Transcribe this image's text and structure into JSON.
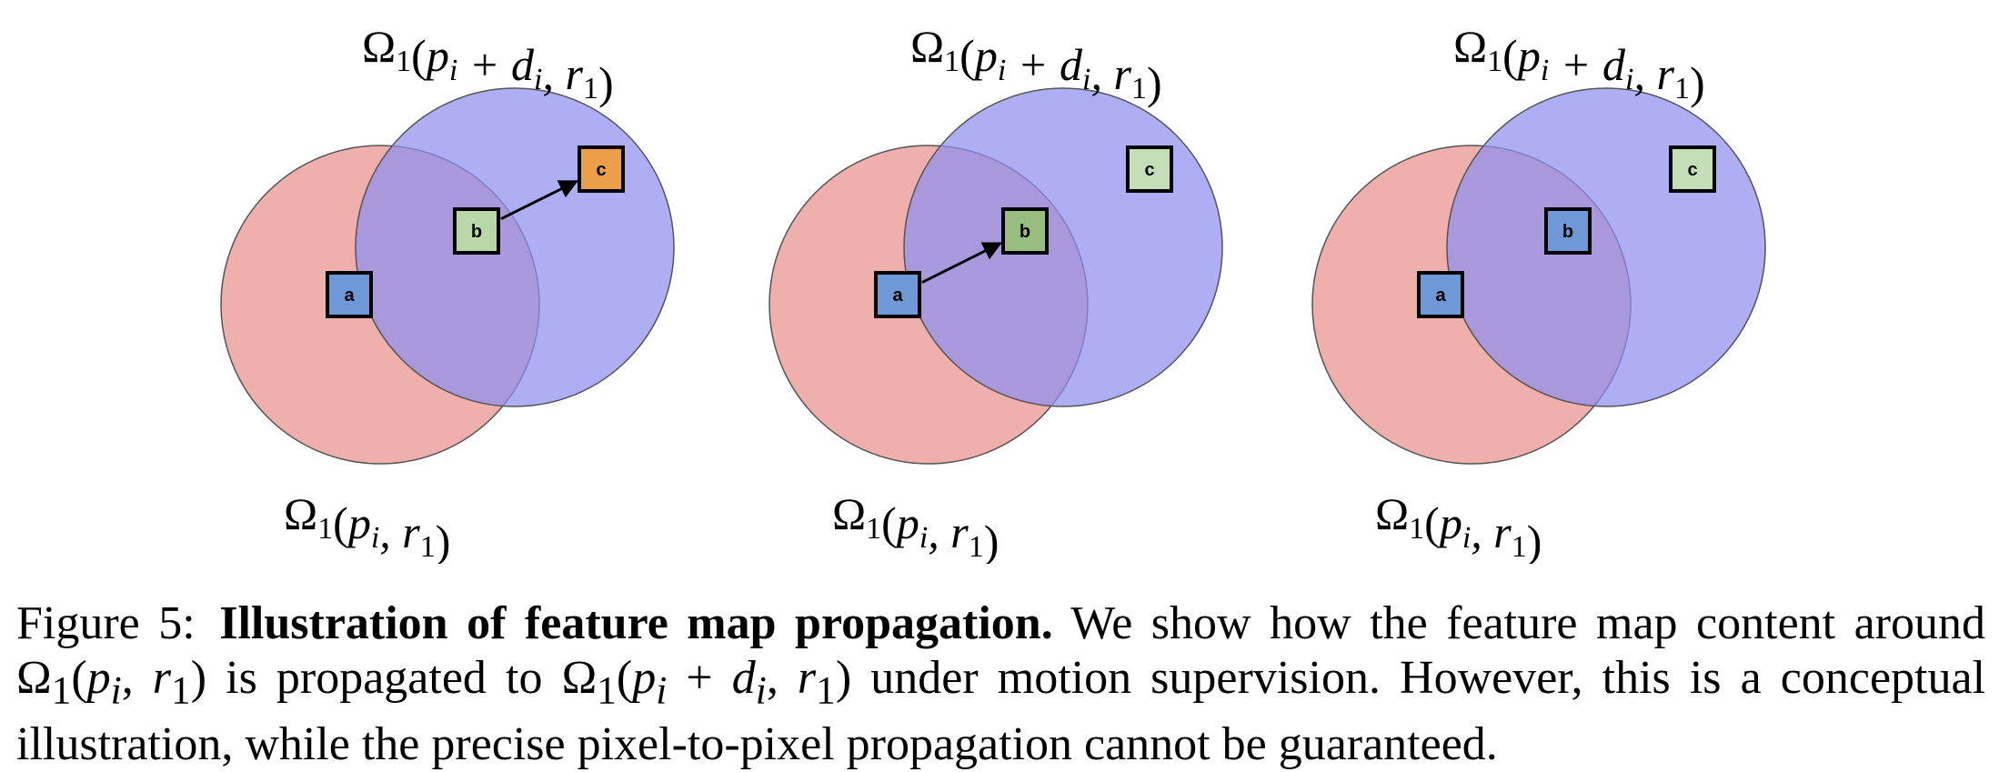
{
  "figure": {
    "panels": [
      {
        "top_label": {
          "sym": "Ω",
          "sub": "1",
          "text": "(p",
          "sub2": "i",
          "mid": " + d",
          "sub3": "i",
          "end": ", r",
          "sub4": "1",
          "close": ")"
        },
        "bottom_label": {
          "sym": "Ω",
          "sub": "1",
          "text": "(p",
          "sub2": "i",
          "end": ", r",
          "sub4": "1",
          "close": ")"
        },
        "boxes": [
          {
            "label": "a",
            "color": "#6f99d6"
          },
          {
            "label": "b",
            "color": "#b9d7a9"
          },
          {
            "label": "c",
            "color": "#eb9f48"
          }
        ],
        "arrow": "b-to-c"
      },
      {
        "top_label": {
          "sym": "Ω",
          "sub": "1",
          "text": "(p",
          "sub2": "i",
          "mid": " + d",
          "sub3": "i",
          "end": ", r",
          "sub4": "1",
          "close": ")"
        },
        "bottom_label": {
          "sym": "Ω",
          "sub": "1",
          "text": "(p",
          "sub2": "i",
          "end": ", r",
          "sub4": "1",
          "close": ")"
        },
        "boxes": [
          {
            "label": "a",
            "color": "#6f99d6"
          },
          {
            "label": "b",
            "color": "#97be7e"
          },
          {
            "label": "c",
            "color": "#c4dfb8"
          }
        ],
        "arrow": "a-to-b"
      },
      {
        "top_label": {
          "sym": "Ω",
          "sub": "1",
          "text": "(p",
          "sub2": "i",
          "mid": " + d",
          "sub3": "i",
          "end": ", r",
          "sub4": "1",
          "close": ")"
        },
        "bottom_label": {
          "sym": "Ω",
          "sub": "1",
          "text": "(p",
          "sub2": "i",
          "end": ", r",
          "sub4": "1",
          "close": ")"
        },
        "boxes": [
          {
            "label": "a",
            "color": "#6f99d6"
          },
          {
            "label": "b",
            "color": "#6f99d6"
          },
          {
            "label": "c",
            "color": "#c4dfb8"
          }
        ],
        "arrow": "none"
      }
    ],
    "colors": {
      "red_circle": "#e88f8a",
      "blue_circle": "#8f8ff0",
      "stroke": "#555555"
    }
  },
  "caption": {
    "label": "Figure 5:",
    "bold": "Illustration of feature map propagation.",
    "t1": "We show how the feature map content around",
    "t2": "is propagated to",
    "t3": "under motion supervision. However, this is a conceptual illustration, while the precise pixel-to-pixel propagation cannot be guaranteed."
  }
}
